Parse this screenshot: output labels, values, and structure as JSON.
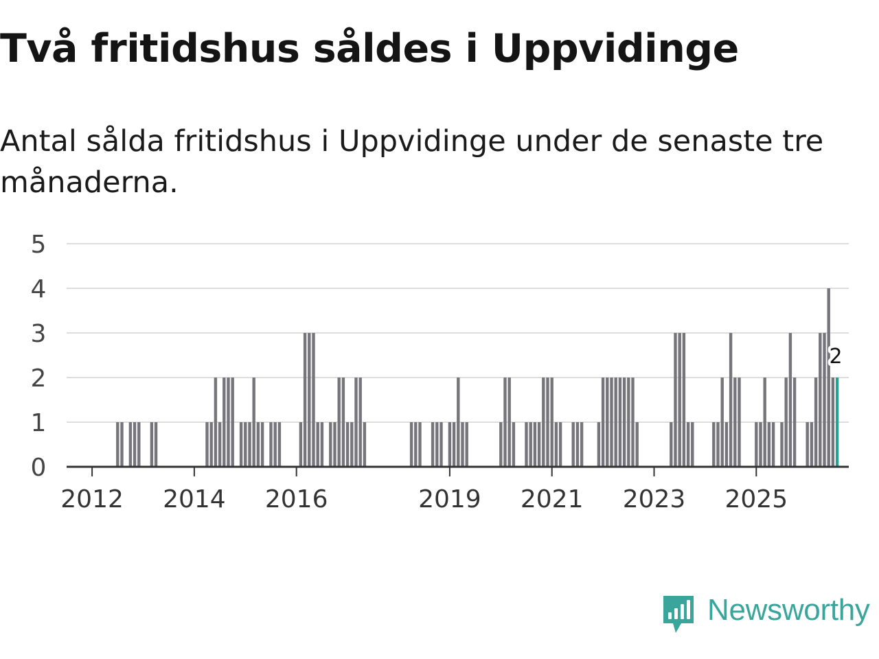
{
  "title": "Två fritidshus såldes i Uppvidinge",
  "subtitle": "Antal sålda fritidshus i Uppvidinge under de senaste tre månaderna.",
  "brand": {
    "name": "Newsworthy",
    "icon": "newsworthy-logo-icon"
  },
  "colors": {
    "bar": "#76757c",
    "highlight": "#2aa197",
    "grid": "#dddddd",
    "axis": "#333333",
    "brand": "#3aa59a"
  },
  "chart_data": {
    "type": "bar",
    "title": "Två fritidshus såldes i Uppvidinge",
    "xlabel": "",
    "ylabel": "",
    "ylim": [
      0,
      5
    ],
    "yticks": [
      0,
      1,
      2,
      3,
      4,
      5
    ],
    "grid": true,
    "start": "2011-10",
    "xticks": [
      {
        "label": "2012",
        "index": 3
      },
      {
        "label": "2014",
        "index": 27
      },
      {
        "label": "2016",
        "index": 51
      },
      {
        "label": "2019",
        "index": 87
      },
      {
        "label": "2021",
        "index": 111
      },
      {
        "label": "2023",
        "index": 135
      },
      {
        "label": "2025",
        "index": 159
      }
    ],
    "values": [
      0,
      0,
      0,
      0,
      0,
      0,
      0,
      0,
      0,
      1,
      1,
      0,
      1,
      1,
      1,
      0,
      0,
      1,
      1,
      0,
      0,
      0,
      0,
      0,
      0,
      0,
      0,
      0,
      0,
      0,
      1,
      1,
      2,
      1,
      2,
      2,
      2,
      0,
      1,
      1,
      1,
      2,
      1,
      1,
      0,
      1,
      1,
      1,
      0,
      0,
      0,
      0,
      1,
      3,
      3,
      3,
      1,
      1,
      0,
      1,
      1,
      2,
      2,
      1,
      1,
      2,
      2,
      1,
      0,
      0,
      0,
      0,
      0,
      0,
      0,
      0,
      0,
      0,
      1,
      1,
      1,
      0,
      0,
      1,
      1,
      1,
      0,
      1,
      1,
      2,
      1,
      1,
      0,
      0,
      0,
      0,
      0,
      0,
      0,
      1,
      2,
      2,
      1,
      0,
      0,
      1,
      1,
      1,
      1,
      2,
      2,
      2,
      1,
      1,
      0,
      0,
      1,
      1,
      1,
      0,
      0,
      0,
      1,
      2,
      2,
      2,
      2,
      2,
      2,
      2,
      2,
      1,
      0,
      0,
      0,
      0,
      0,
      0,
      0,
      1,
      3,
      3,
      3,
      1,
      1,
      0,
      0,
      0,
      0,
      1,
      1,
      2,
      1,
      3,
      2,
      2,
      0,
      0,
      0,
      1,
      1,
      2,
      1,
      1,
      0,
      1,
      2,
      3,
      2,
      0,
      0,
      1,
      1,
      2,
      3,
      3,
      4,
      2,
      2
    ],
    "highlight_index": 178,
    "annotation": {
      "index": 178,
      "text": "2"
    }
  }
}
